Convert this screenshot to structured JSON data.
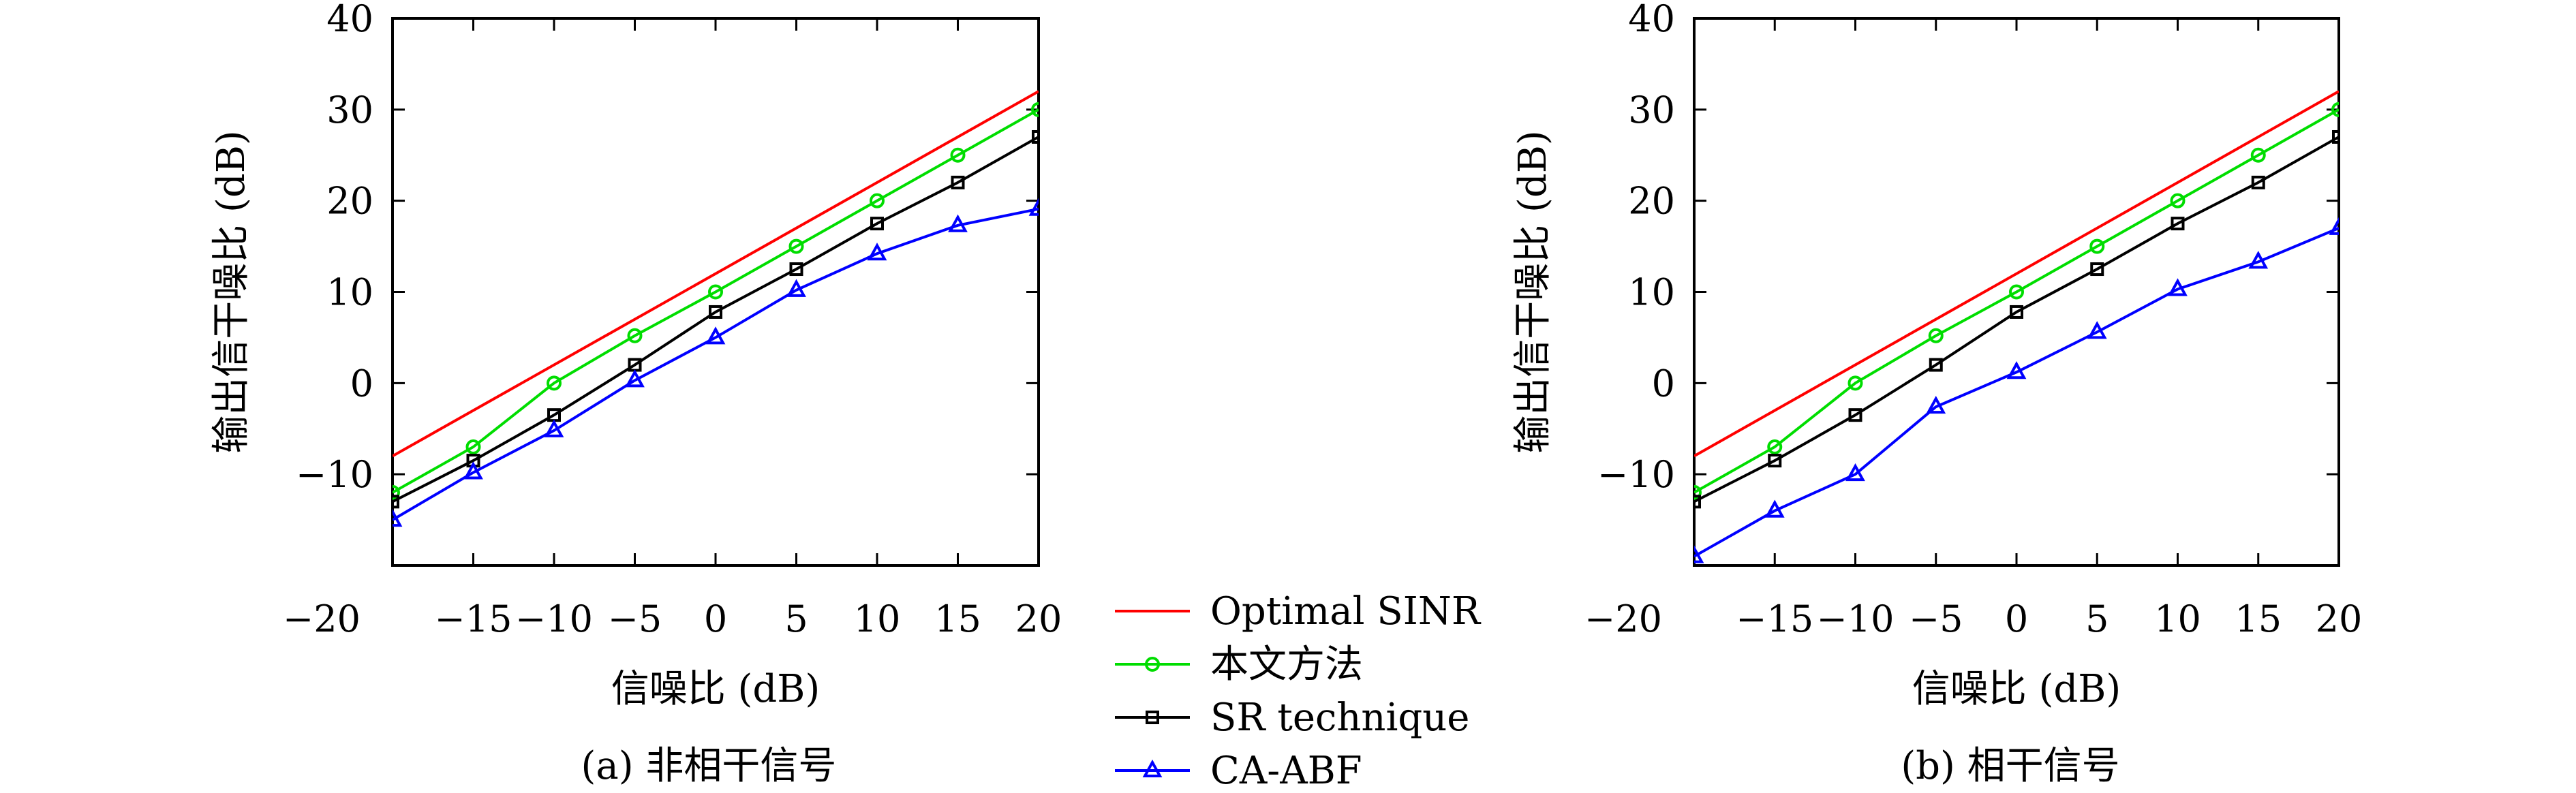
{
  "legend": {
    "entries": [
      {
        "label": "Optimal SINR",
        "color": "#ff0000",
        "marker": "none"
      },
      {
        "label": "本文方法",
        "color": "#00dd00",
        "marker": "circle"
      },
      {
        "label": "SR technique",
        "color": "#000000",
        "marker": "square"
      },
      {
        "label": "CA-ABF",
        "color": "#0000ff",
        "marker": "triangle"
      }
    ]
  },
  "chart_data": [
    {
      "type": "line",
      "caption": "(a) 非相干信号",
      "xlabel": "信噪比 (dB)",
      "ylabel": "输出信干噪比 (dB)",
      "xlim": [
        -20,
        20
      ],
      "ylim": [
        -20,
        40
      ],
      "xticks": [
        -20,
        -15,
        -10,
        -5,
        0,
        5,
        10,
        15,
        20
      ],
      "yticks": [
        -10,
        0,
        10,
        20,
        30,
        40
      ],
      "series": [
        {
          "name": "Optimal SINR",
          "color": "#ff0000",
          "marker": "none",
          "points": [
            [
              -20,
              -8
            ],
            [
              20,
              32
            ]
          ]
        },
        {
          "name": "本文方法",
          "color": "#00dd00",
          "marker": "circle",
          "points": [
            [
              -20,
              -12
            ],
            [
              -15,
              -7
            ],
            [
              -10,
              0
            ],
            [
              -5,
              5.2
            ],
            [
              0,
              10
            ],
            [
              5,
              15
            ],
            [
              10,
              20
            ],
            [
              15,
              25
            ],
            [
              20,
              30
            ]
          ]
        },
        {
          "name": "SR technique",
          "color": "#000000",
          "marker": "square",
          "points": [
            [
              -20,
              -13
            ],
            [
              -15,
              -8.5
            ],
            [
              -10,
              -3.5
            ],
            [
              -5,
              2
            ],
            [
              0,
              7.8
            ],
            [
              5,
              12.5
            ],
            [
              10,
              17.5
            ],
            [
              15,
              22
            ],
            [
              20,
              27
            ]
          ]
        },
        {
          "name": "CA-ABF",
          "color": "#0000ff",
          "marker": "triangle",
          "points": [
            [
              -20,
              -15
            ],
            [
              -15,
              -9.8
            ],
            [
              -10,
              -5.2
            ],
            [
              -5,
              0.3
            ],
            [
              0,
              5
            ],
            [
              5,
              10.2
            ],
            [
              10,
              14.2
            ],
            [
              15,
              17.3
            ],
            [
              20,
              19.1
            ]
          ]
        }
      ]
    },
    {
      "type": "line",
      "caption": "(b) 相干信号",
      "xlabel": "信噪比 (dB)",
      "ylabel": "输出信干噪比 (dB)",
      "xlim": [
        -20,
        20
      ],
      "ylim": [
        -20,
        40
      ],
      "xticks": [
        -20,
        -15,
        -10,
        -5,
        0,
        5,
        10,
        15,
        20
      ],
      "yticks": [
        -10,
        0,
        10,
        20,
        30,
        40
      ],
      "series": [
        {
          "name": "Optimal SINR",
          "color": "#ff0000",
          "marker": "none",
          "points": [
            [
              -20,
              -8
            ],
            [
              20,
              32
            ]
          ]
        },
        {
          "name": "本文方法",
          "color": "#00dd00",
          "marker": "circle",
          "points": [
            [
              -20,
              -12
            ],
            [
              -15,
              -7
            ],
            [
              -10,
              0
            ],
            [
              -5,
              5.2
            ],
            [
              0,
              10
            ],
            [
              5,
              15
            ],
            [
              10,
              20
            ],
            [
              15,
              25
            ],
            [
              20,
              30
            ]
          ]
        },
        {
          "name": "SR technique",
          "color": "#000000",
          "marker": "square",
          "points": [
            [
              -20,
              -13
            ],
            [
              -15,
              -8.5
            ],
            [
              -10,
              -3.5
            ],
            [
              -5,
              2
            ],
            [
              0,
              7.8
            ],
            [
              5,
              12.5
            ],
            [
              10,
              17.5
            ],
            [
              15,
              22
            ],
            [
              20,
              27
            ]
          ]
        },
        {
          "name": "CA-ABF",
          "color": "#0000ff",
          "marker": "triangle",
          "points": [
            [
              -20,
              -19
            ],
            [
              -15,
              -14
            ],
            [
              -10,
              -10
            ],
            [
              -5,
              -2.6
            ],
            [
              0,
              1.2
            ],
            [
              5,
              5.6
            ],
            [
              10,
              10.3
            ],
            [
              15,
              13.3
            ],
            [
              20,
              17
            ]
          ]
        }
      ]
    }
  ]
}
